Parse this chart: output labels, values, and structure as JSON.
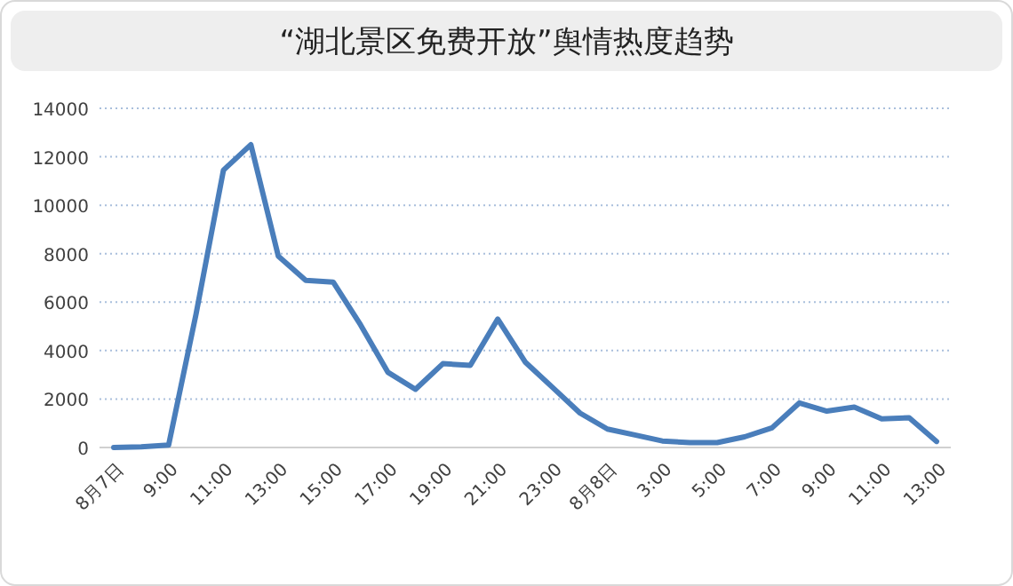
{
  "chart_data": {
    "type": "line",
    "title": "“湖北景区免费开放”舆情热度趋势",
    "categories": [
      "8月7日",
      null,
      "9:00",
      null,
      "11:00",
      null,
      "13:00",
      null,
      "15:00",
      null,
      "17:00",
      null,
      "19:00",
      null,
      "21:00",
      null,
      "23:00",
      null,
      "8月8日",
      null,
      "3:00",
      null,
      "5:00",
      null,
      "7:00",
      null,
      "9:00",
      null,
      "11:00",
      null,
      "13:00"
    ],
    "series": [
      {
        "color": "#4a7ebb",
        "values": [
          0,
          30,
          100,
          5500,
          11450,
          12500,
          7900,
          6900,
          6830,
          5060,
          3100,
          2400,
          3460,
          3390,
          5300,
          3530,
          2480,
          1420,
          760,
          520,
          270,
          200,
          200,
          440,
          810,
          1840,
          1500,
          1670,
          1180,
          1230,
          250
        ]
      }
    ],
    "ylim": [
      0,
      14000
    ],
    "yticks": [
      0,
      2000,
      4000,
      6000,
      8000,
      10000,
      12000,
      14000
    ],
    "grid": "y",
    "marker": "none",
    "line_style": "solid"
  }
}
